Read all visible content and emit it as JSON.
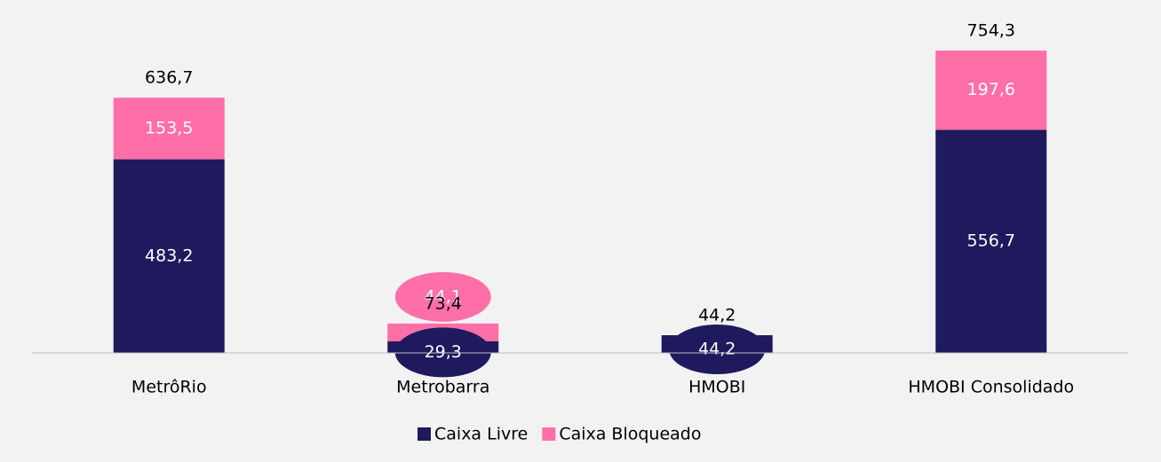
{
  "chart_data": {
    "type": "stacked_bar",
    "categories": [
      "MetrôRio",
      "Metrobarra",
      "HMOBI",
      "HMOBI Consolidado"
    ],
    "series": [
      {
        "name": "Caixa Livre",
        "color": "#1f1a5e",
        "values": [
          483.2,
          29.3,
          44.2,
          556.7
        ],
        "value_labels": [
          "483,2",
          "29,3",
          "44,2",
          "556,7"
        ]
      },
      {
        "name": "Caixa Bloqueado",
        "color": "#ff6fa7",
        "values": [
          153.5,
          44.1,
          null,
          197.6
        ],
        "value_labels": [
          "153,5",
          "44,1",
          null,
          "197,6"
        ]
      }
    ],
    "totals": [
      636.7,
      73.4,
      44.2,
      754.3
    ],
    "total_labels": [
      "636,7",
      "73,4",
      "44,2",
      "754,3"
    ],
    "ylim": [
      0,
      800
    ],
    "legend": "bottom"
  }
}
